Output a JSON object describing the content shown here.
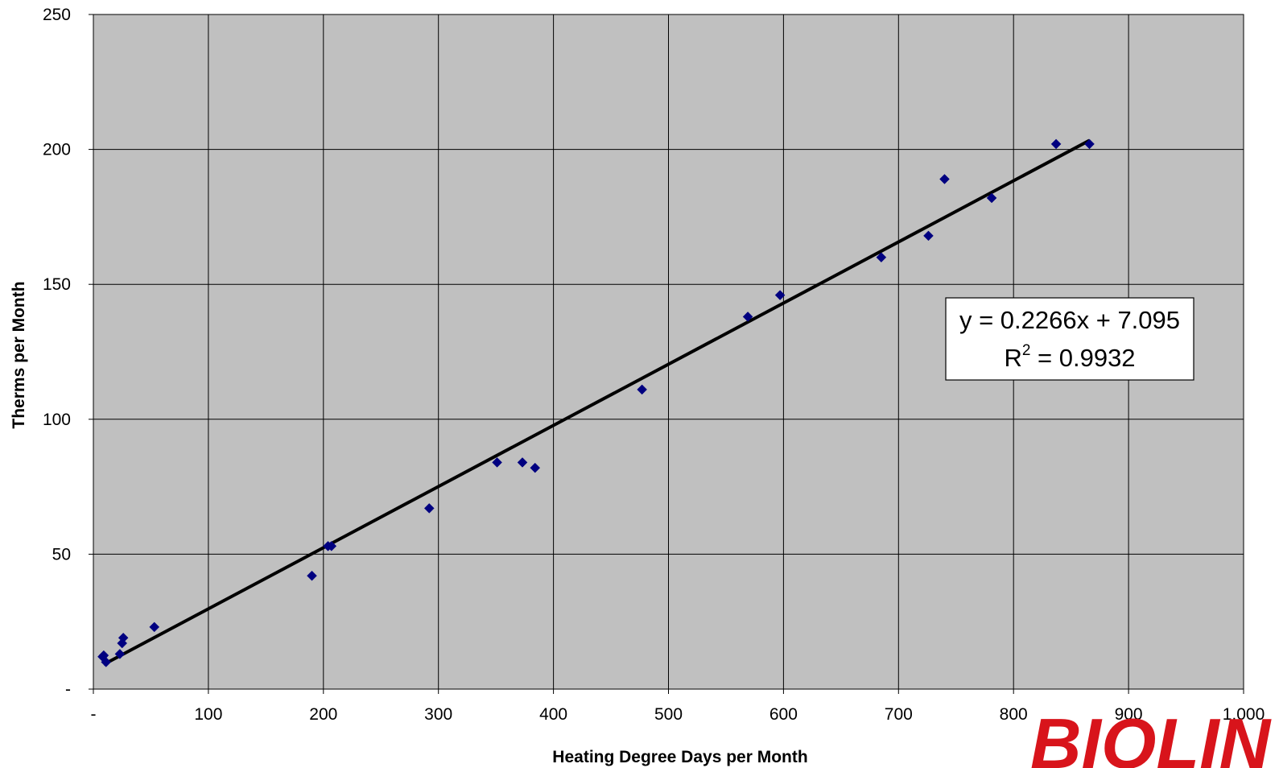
{
  "chart_data": {
    "type": "scatter",
    "title": "",
    "xlabel": "Heating Degree Days per Month",
    "ylabel": "Therms per Month",
    "xlim": [
      0,
      1000
    ],
    "ylim": [
      0,
      250
    ],
    "x_ticks": [
      0,
      100,
      200,
      300,
      400,
      500,
      600,
      700,
      800,
      900,
      1000
    ],
    "x_tick_labels": [
      "-",
      "100",
      "200",
      "300",
      "400",
      "500",
      "600",
      "700",
      "800",
      "900",
      "1,000"
    ],
    "y_ticks": [
      0,
      50,
      100,
      150,
      200,
      250
    ],
    "y_tick_labels": [
      "-",
      "50",
      "100",
      "150",
      "200",
      "250"
    ],
    "grid": true,
    "plot_background": "#c0c0c0",
    "marker_color": "#000080",
    "marker_shape": "diamond",
    "series": [
      {
        "points": [
          [
            8,
            12
          ],
          [
            9,
            12.5
          ],
          [
            11,
            10
          ],
          [
            23,
            13
          ],
          [
            25,
            17
          ],
          [
            26,
            19
          ],
          [
            53,
            23
          ],
          [
            190,
            42
          ],
          [
            204,
            53
          ],
          [
            207,
            53
          ],
          [
            292,
            67
          ],
          [
            351,
            84
          ],
          [
            373,
            84
          ],
          [
            384,
            82
          ],
          [
            477,
            111
          ],
          [
            569,
            138
          ],
          [
            597,
            146
          ],
          [
            685,
            160
          ],
          [
            726,
            168
          ],
          [
            740,
            189
          ],
          [
            781,
            182
          ],
          [
            837,
            202
          ],
          [
            866,
            202
          ]
        ]
      }
    ],
    "trendline": {
      "slope": 0.2266,
      "intercept": 7.095,
      "x_range": [
        9,
        866
      ],
      "color": "#000000",
      "equation_label": "y = 0.2266x + 7.095",
      "r2_prefix": "R",
      "r2_exponent": "2",
      "r2_value_text": " = 0.9932"
    }
  },
  "logo": {
    "text": "BIOLIN",
    "color": "#d8141b"
  }
}
